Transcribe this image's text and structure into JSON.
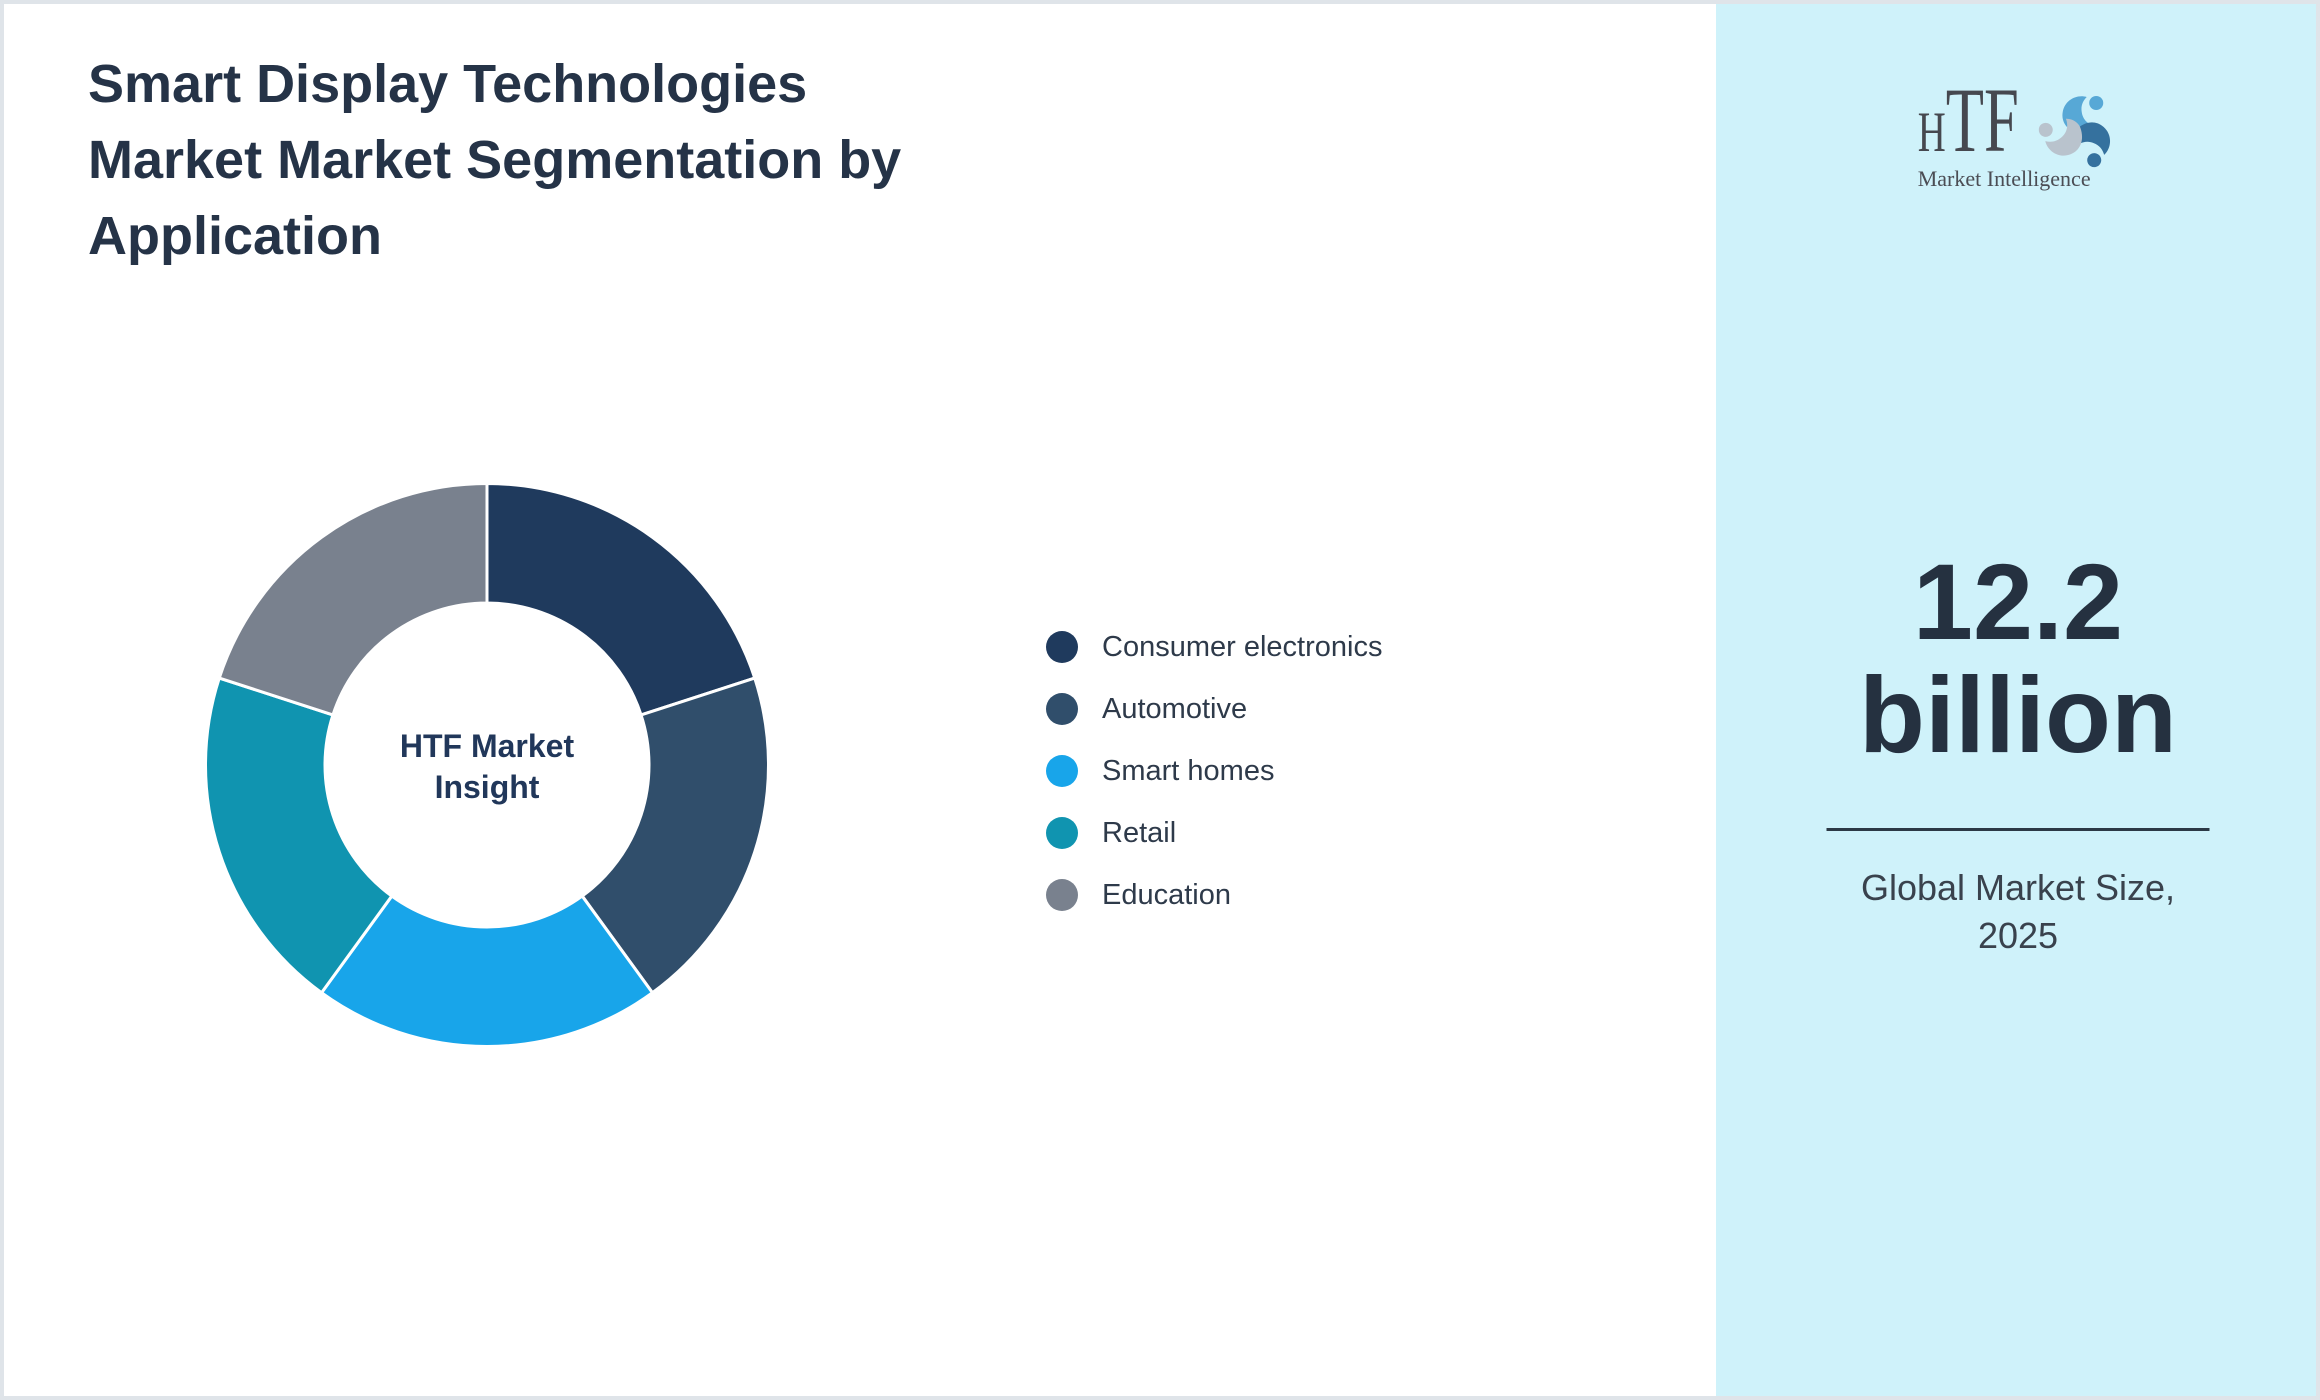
{
  "page": {
    "background": "#ffffff",
    "frame_color": "#dfe4e9",
    "sidebar_background": "#cff2fa"
  },
  "chart_data": {
    "type": "pie",
    "title": "Smart Display Technologies Market Market Segmentation by Application",
    "center_label": "HTF Market Insight",
    "hole_ratio": 0.57,
    "legend_position": "right",
    "start_angle_deg": 0,
    "direction": "clockwise",
    "segments": [
      {
        "label": "Consumer electronics",
        "value": 20,
        "color": "#1f3a5d"
      },
      {
        "label": "Automotive",
        "value": 20,
        "color": "#304e6b"
      },
      {
        "label": "Smart homes",
        "value": 20,
        "color": "#18a5ea"
      },
      {
        "label": "Retail",
        "value": 20,
        "color": "#1094b0"
      },
      {
        "label": "Education",
        "value": 20,
        "color": "#79818e"
      }
    ]
  },
  "sidebar": {
    "logo": {
      "brand": "HTF",
      "tagline": "Market Intelligence",
      "swirl_colors": [
        "#57a8d6",
        "#35719e",
        "#b9c3cd"
      ]
    },
    "market_size_value": "12.2 billion",
    "market_size_caption": "Global Market Size, 2025"
  }
}
